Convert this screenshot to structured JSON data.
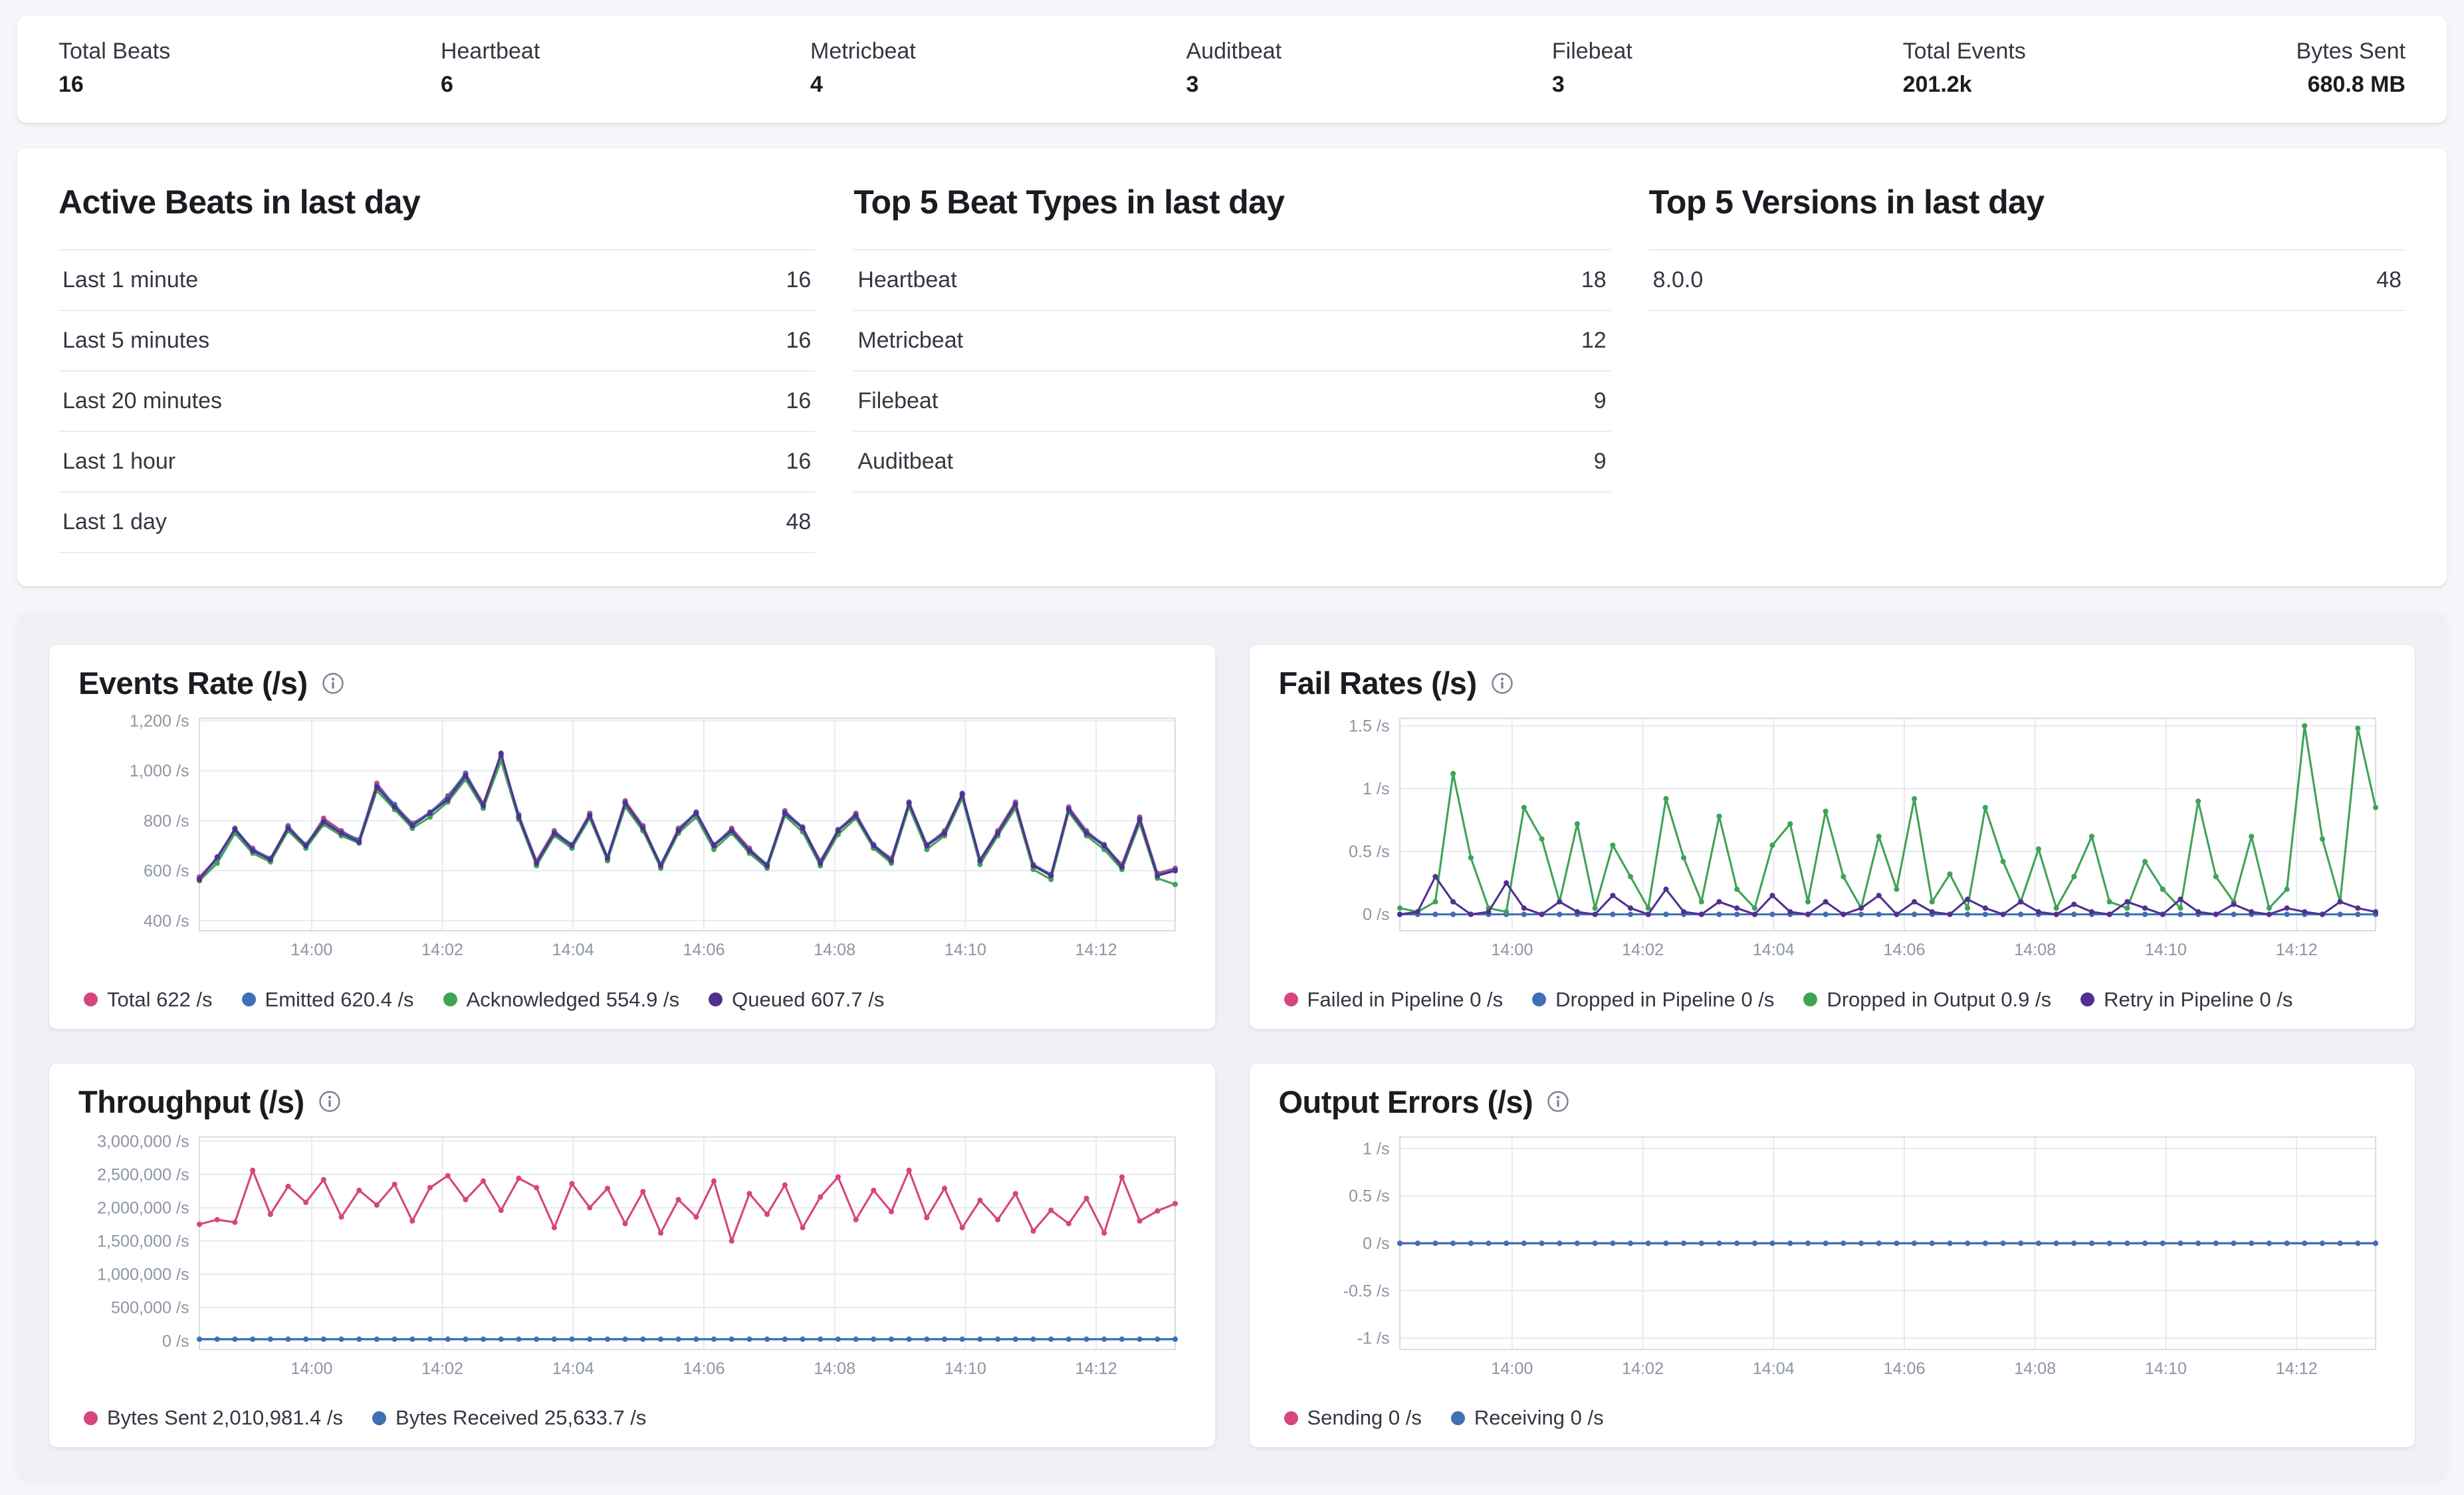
{
  "colors": {
    "pink": "#d6457e",
    "blue": "#3f6fb5",
    "green": "#3fa356",
    "purple": "#52308f",
    "grid": "#e6e9f0",
    "plot_border": "#d6dce6",
    "axis_text": "#8d95a3"
  },
  "icons": {
    "info": "i"
  },
  "stats": [
    {
      "label": "Total Beats",
      "value": "16"
    },
    {
      "label": "Heartbeat",
      "value": "6"
    },
    {
      "label": "Metricbeat",
      "value": "4"
    },
    {
      "label": "Auditbeat",
      "value": "3"
    },
    {
      "label": "Filebeat",
      "value": "3"
    },
    {
      "label": "Total Events",
      "value": "201.2k"
    },
    {
      "label": "Bytes Sent",
      "value": "680.8 MB"
    }
  ],
  "tables": [
    {
      "title": "Active Beats in last day",
      "rows": [
        [
          "Last 1 minute",
          "16"
        ],
        [
          "Last 5 minutes",
          "16"
        ],
        [
          "Last 20 minutes",
          "16"
        ],
        [
          "Last 1 hour",
          "16"
        ],
        [
          "Last 1 day",
          "48"
        ]
      ]
    },
    {
      "title": "Top 5 Beat Types in last day",
      "rows": [
        [
          "Heartbeat",
          "18"
        ],
        [
          "Metricbeat",
          "12"
        ],
        [
          "Filebeat",
          "9"
        ],
        [
          "Auditbeat",
          "9"
        ]
      ]
    },
    {
      "title": "Top 5 Versions in last day",
      "rows": [
        [
          "8.0.0",
          "48"
        ]
      ]
    }
  ],
  "chart_data": [
    {
      "id": "events-rate",
      "type": "line",
      "title": "Events Rate (/s)",
      "ylim": [
        360,
        1210
      ],
      "y_ticks": [
        {
          "label": "1,200 /s",
          "value": 1200
        },
        {
          "label": "1,000 /s",
          "value": 1000
        },
        {
          "label": "800 /s",
          "value": 800
        },
        {
          "label": "600 /s",
          "value": 600
        },
        {
          "label": "400 /s",
          "value": 400
        }
      ],
      "x_ticks": [
        {
          "label": "14:00",
          "f": 0.115
        },
        {
          "label": "14:02",
          "f": 0.249
        },
        {
          "label": "14:04",
          "f": 0.383
        },
        {
          "label": "14:06",
          "f": 0.517
        },
        {
          "label": "14:08",
          "f": 0.651
        },
        {
          "label": "14:10",
          "f": 0.785
        },
        {
          "label": "14:12",
          "f": 0.919
        }
      ],
      "series": [
        {
          "name": "Total",
          "legend": "Total 622 /s",
          "color": "#d6457e",
          "values": [
            575,
            650,
            760,
            690,
            640,
            780,
            700,
            810,
            760,
            720,
            950,
            860,
            790,
            830,
            900,
            985,
            870,
            1065,
            820,
            640,
            760,
            700,
            830,
            650,
            880,
            780,
            620,
            770,
            830,
            700,
            770,
            690,
            620,
            840,
            770,
            640,
            760,
            830,
            700,
            650,
            870,
            700,
            760,
            905,
            640,
            760,
            875,
            620,
            580,
            855,
            760,
            700,
            625,
            815,
            590,
            610
          ]
        },
        {
          "name": "Emitted",
          "legend": "Emitted 620.4 /s",
          "color": "#3f6fb5",
          "values": [
            570,
            645,
            770,
            685,
            650,
            775,
            705,
            800,
            755,
            725,
            940,
            865,
            785,
            835,
            895,
            990,
            865,
            1055,
            825,
            635,
            755,
            705,
            825,
            655,
            875,
            775,
            625,
            765,
            835,
            705,
            765,
            685,
            625,
            835,
            775,
            635,
            765,
            825,
            705,
            645,
            875,
            705,
            755,
            910,
            645,
            755,
            870,
            625,
            585,
            850,
            755,
            705,
            620,
            810,
            585,
            605
          ]
        },
        {
          "name": "Acknowledged",
          "legend": "Acknowledged 554.9 /s",
          "color": "#3fa356",
          "values": [
            560,
            630,
            750,
            670,
            635,
            760,
            690,
            785,
            740,
            710,
            920,
            845,
            770,
            815,
            875,
            965,
            850,
            1040,
            805,
            620,
            740,
            690,
            810,
            640,
            855,
            760,
            610,
            750,
            815,
            685,
            750,
            670,
            610,
            820,
            755,
            620,
            745,
            810,
            690,
            630,
            855,
            685,
            740,
            890,
            625,
            740,
            850,
            605,
            565,
            835,
            740,
            685,
            605,
            790,
            570,
            545
          ]
        },
        {
          "name": "Queued",
          "legend": "Queued 607.7 /s",
          "color": "#52308f",
          "values": [
            565,
            655,
            765,
            680,
            645,
            770,
            700,
            795,
            750,
            715,
            935,
            855,
            780,
            830,
            885,
            980,
            860,
            1070,
            815,
            630,
            750,
            700,
            820,
            650,
            870,
            770,
            620,
            760,
            830,
            700,
            760,
            680,
            620,
            830,
            770,
            630,
            760,
            820,
            700,
            640,
            870,
            700,
            750,
            905,
            640,
            750,
            865,
            620,
            580,
            845,
            750,
            700,
            615,
            805,
            580,
            600
          ]
        }
      ]
    },
    {
      "id": "fail-rates",
      "type": "line",
      "title": "Fail Rates (/s)",
      "ylim": [
        -0.13,
        1.56
      ],
      "y_ticks": [
        {
          "label": "1.5 /s",
          "value": 1.5
        },
        {
          "label": "1 /s",
          "value": 1
        },
        {
          "label": "0.5 /s",
          "value": 0.5
        },
        {
          "label": "0 /s",
          "value": 0
        }
      ],
      "x_ticks": [
        {
          "label": "14:00",
          "f": 0.115
        },
        {
          "label": "14:02",
          "f": 0.249
        },
        {
          "label": "14:04",
          "f": 0.383
        },
        {
          "label": "14:06",
          "f": 0.517
        },
        {
          "label": "14:08",
          "f": 0.651
        },
        {
          "label": "14:10",
          "f": 0.785
        },
        {
          "label": "14:12",
          "f": 0.919
        }
      ],
      "series": [
        {
          "name": "Failed in Pipeline",
          "legend": "Failed in Pipeline 0 /s",
          "color": "#d6457e",
          "const": 0,
          "count": 56
        },
        {
          "name": "Dropped in Pipeline",
          "legend": "Dropped in Pipeline 0 /s",
          "color": "#3f6fb5",
          "const": 0,
          "count": 56
        },
        {
          "name": "Dropped in Output",
          "legend": "Dropped in Output 0.9 /s",
          "color": "#3fa356",
          "values": [
            0.05,
            0.02,
            0.1,
            1.12,
            0.45,
            0.05,
            0.02,
            0.85,
            0.6,
            0.1,
            0.72,
            0.05,
            0.55,
            0.3,
            0.05,
            0.92,
            0.45,
            0.1,
            0.78,
            0.2,
            0.05,
            0.55,
            0.72,
            0.1,
            0.82,
            0.3,
            0.05,
            0.62,
            0.2,
            0.92,
            0.1,
            0.32,
            0.05,
            0.85,
            0.42,
            0.1,
            0.52,
            0.05,
            0.3,
            0.62,
            0.1,
            0.05,
            0.42,
            0.2,
            0.05,
            0.9,
            0.3,
            0.1,
            0.62,
            0.05,
            0.2,
            1.5,
            0.6,
            0.1,
            1.48,
            0.85
          ]
        },
        {
          "name": "Retry in Pipeline",
          "legend": "Retry in Pipeline 0 /s",
          "color": "#52308f",
          "values": [
            0,
            0.02,
            0.3,
            0.1,
            0,
            0.02,
            0.25,
            0.05,
            0,
            0.1,
            0.02,
            0,
            0.15,
            0.05,
            0,
            0.2,
            0.02,
            0,
            0.1,
            0.05,
            0,
            0.15,
            0.02,
            0,
            0.1,
            0,
            0.05,
            0.15,
            0,
            0.1,
            0.02,
            0,
            0.12,
            0.05,
            0,
            0.1,
            0.02,
            0,
            0.08,
            0.02,
            0,
            0.1,
            0.05,
            0,
            0.12,
            0.02,
            0,
            0.08,
            0.02,
            0,
            0.05,
            0.02,
            0,
            0.1,
            0.05,
            0.02
          ]
        }
      ]
    },
    {
      "id": "throughput",
      "type": "line",
      "title": "Throughput (/s)",
      "ylim": [
        -130000,
        3060000
      ],
      "y_ticks": [
        {
          "label": "3,000,000 /s",
          "value": 3000000
        },
        {
          "label": "2,500,000 /s",
          "value": 2500000
        },
        {
          "label": "2,000,000 /s",
          "value": 2000000
        },
        {
          "label": "1,500,000 /s",
          "value": 1500000
        },
        {
          "label": "1,000,000 /s",
          "value": 1000000
        },
        {
          "label": "500,000 /s",
          "value": 500000
        },
        {
          "label": "0 /s",
          "value": 0
        }
      ],
      "x_ticks": [
        {
          "label": "14:00",
          "f": 0.115
        },
        {
          "label": "14:02",
          "f": 0.249
        },
        {
          "label": "14:04",
          "f": 0.383
        },
        {
          "label": "14:06",
          "f": 0.517
        },
        {
          "label": "14:08",
          "f": 0.651
        },
        {
          "label": "14:10",
          "f": 0.785
        },
        {
          "label": "14:12",
          "f": 0.919
        }
      ],
      "series": [
        {
          "name": "Bytes Sent",
          "legend": "Bytes Sent 2,010,981.4 /s",
          "color": "#d6457e",
          "values": [
            1750000,
            1820000,
            1780000,
            2560000,
            1900000,
            2320000,
            2080000,
            2420000,
            1860000,
            2260000,
            2040000,
            2350000,
            1800000,
            2300000,
            2480000,
            2120000,
            2400000,
            1960000,
            2440000,
            2300000,
            1700000,
            2360000,
            2000000,
            2290000,
            1760000,
            2240000,
            1620000,
            2120000,
            1860000,
            2400000,
            1500000,
            2210000,
            1900000,
            2340000,
            1700000,
            2160000,
            2460000,
            1820000,
            2260000,
            1940000,
            2560000,
            1850000,
            2290000,
            1700000,
            2110000,
            1820000,
            2210000,
            1650000,
            1960000,
            1760000,
            2140000,
            1620000,
            2460000,
            1800000,
            1950000,
            2060000
          ]
        },
        {
          "name": "Bytes Received",
          "legend": "Bytes Received 25,633.7 /s",
          "color": "#3f6fb5",
          "const": 25000,
          "count": 56
        }
      ]
    },
    {
      "id": "output-errors",
      "type": "line",
      "title": "Output Errors (/s)",
      "ylim": [
        -1.12,
        1.12
      ],
      "y_ticks": [
        {
          "label": "1 /s",
          "value": 1
        },
        {
          "label": "0.5 /s",
          "value": 0.5
        },
        {
          "label": "0 /s",
          "value": 0
        },
        {
          "label": "-0.5 /s",
          "value": -0.5
        },
        {
          "label": "-1 /s",
          "value": -1
        }
      ],
      "x_ticks": [
        {
          "label": "14:00",
          "f": 0.115
        },
        {
          "label": "14:02",
          "f": 0.249
        },
        {
          "label": "14:04",
          "f": 0.383
        },
        {
          "label": "14:06",
          "f": 0.517
        },
        {
          "label": "14:08",
          "f": 0.651
        },
        {
          "label": "14:10",
          "f": 0.785
        },
        {
          "label": "14:12",
          "f": 0.919
        }
      ],
      "series": [
        {
          "name": "Sending",
          "legend": "Sending 0 /s",
          "color": "#d6457e",
          "const": 0,
          "count": 56
        },
        {
          "name": "Receiving",
          "legend": "Receiving 0 /s",
          "color": "#3f6fb5",
          "const": 0,
          "count": 56
        }
      ]
    }
  ]
}
